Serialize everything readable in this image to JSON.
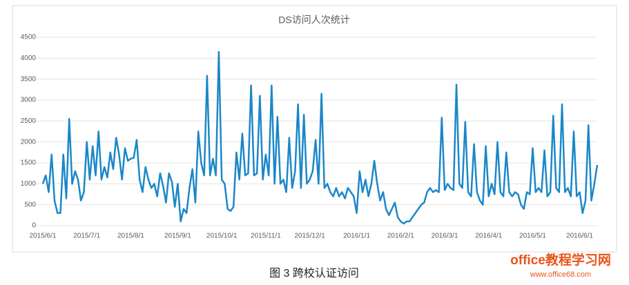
{
  "chart_data": {
    "type": "line",
    "title": "DS访问人次统计",
    "categories": [
      "2015/6/1",
      null,
      null,
      null,
      null,
      null,
      null,
      null,
      null,
      null,
      null,
      null,
      null,
      null,
      null,
      "2015/7/1",
      null,
      null,
      null,
      null,
      null,
      null,
      null,
      null,
      null,
      null,
      null,
      null,
      null,
      null,
      "2015/8/1",
      null,
      null,
      null,
      null,
      null,
      null,
      null,
      null,
      null,
      null,
      null,
      null,
      null,
      null,
      null,
      "2015/9/1",
      null,
      null,
      null,
      null,
      null,
      null,
      null,
      null,
      null,
      null,
      null,
      null,
      null,
      null,
      "2015/10/1",
      null,
      null,
      null,
      null,
      null,
      null,
      null,
      null,
      null,
      null,
      null,
      null,
      null,
      null,
      "2015/11/1",
      null,
      null,
      null,
      null,
      null,
      null,
      null,
      null,
      null,
      null,
      null,
      null,
      null,
      null,
      "2015/12/1",
      null,
      null,
      null,
      null,
      null,
      null,
      null,
      null,
      null,
      null,
      null,
      null,
      null,
      null,
      null,
      "2016/1/1",
      null,
      null,
      null,
      null,
      null,
      null,
      null,
      null,
      null,
      null,
      null,
      null,
      null,
      null,
      "2016/2/1",
      null,
      null,
      null,
      null,
      null,
      null,
      null,
      null,
      null,
      null,
      null,
      null,
      null,
      null,
      "2016/3/1",
      null,
      null,
      null,
      null,
      null,
      null,
      null,
      null,
      null,
      null,
      null,
      null,
      null,
      null,
      "2016/4/1",
      null,
      null,
      null,
      null,
      null,
      null,
      null,
      null,
      null,
      null,
      null,
      null,
      null,
      null,
      "2016/5/1",
      null,
      null,
      null,
      null,
      null,
      null,
      null,
      null,
      null,
      null,
      null,
      null,
      null,
      null,
      null,
      "2016/6/1",
      null,
      null,
      null,
      null,
      null,
      null
    ],
    "values": [
      1000,
      1200,
      800,
      1700,
      600,
      300,
      300,
      1700,
      650,
      2550,
      1000,
      1300,
      1100,
      600,
      800,
      2000,
      1100,
      1900,
      1200,
      2250,
      1100,
      1400,
      1150,
      1750,
      1350,
      2100,
      1700,
      1100,
      1850,
      1550,
      1600,
      1620,
      2050,
      1100,
      800,
      1400,
      1100,
      900,
      1000,
      700,
      1250,
      950,
      550,
      1250,
      1050,
      450,
      1000,
      100,
      400,
      300,
      900,
      1350,
      550,
      2250,
      1500,
      1200,
      3580,
      1200,
      1600,
      1200,
      4150,
      1100,
      1000,
      400,
      350,
      450,
      1750,
      1100,
      2200,
      1200,
      1250,
      3350,
      1200,
      1250,
      3100,
      1100,
      1700,
      1200,
      3350,
      1000,
      2600,
      1000,
      1100,
      800,
      2100,
      900,
      1300,
      2900,
      900,
      2650,
      1000,
      1100,
      1300,
      2050,
      1000,
      3150,
      900,
      1000,
      800,
      700,
      900,
      700,
      800,
      650,
      900,
      800,
      700,
      300,
      1300,
      800,
      1100,
      700,
      1000,
      1550,
      1000,
      600,
      800,
      400,
      250,
      400,
      550,
      200,
      100,
      50,
      100,
      100,
      200,
      300,
      400,
      500,
      550,
      800,
      900,
      800,
      850,
      800,
      2580,
      850,
      1000,
      900,
      850,
      3370,
      1000,
      900,
      2480,
      800,
      700,
      1950,
      800,
      600,
      500,
      1900,
      700,
      1000,
      750,
      2000,
      800,
      700,
      1750,
      800,
      700,
      800,
      750,
      500,
      400,
      800,
      750,
      1850,
      800,
      900,
      800,
      1800,
      700,
      800,
      2630,
      900,
      800,
      2900,
      800,
      900,
      700,
      2250,
      700,
      800,
      300,
      600,
      2400,
      600,
      1000,
      1450
    ],
    "color": "#1b87c8",
    "ylim": [
      0,
      4500
    ],
    "yticks": [
      0,
      500,
      1000,
      1500,
      2000,
      2500,
      3000,
      3500,
      4000,
      4500
    ],
    "grid": true
  },
  "caption": "图 3   跨校认证访问",
  "watermark": {
    "site": "office教程学习网",
    "url": "www.office68.com"
  }
}
